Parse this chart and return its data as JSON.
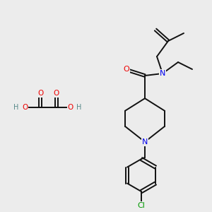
{
  "bg_color": "#ececec",
  "atom_colors": {
    "N": "#0000ee",
    "O": "#ee0000",
    "Cl": "#009900",
    "H": "#558888"
  },
  "bond_color": "#111111",
  "figsize": [
    3.0,
    3.0
  ],
  "dpi": 100,
  "lw": 1.4,
  "fs": 7.5
}
